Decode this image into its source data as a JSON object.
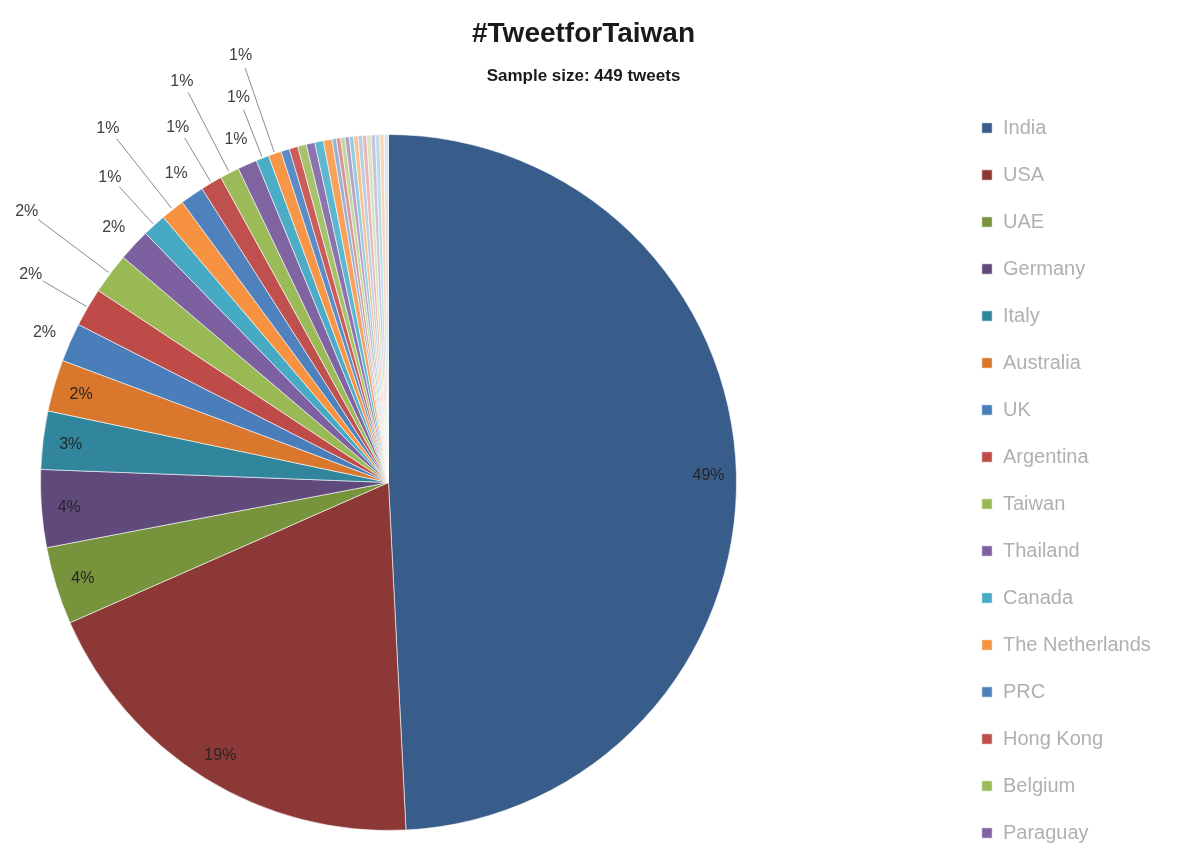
{
  "chart_data": {
    "type": "pie",
    "title": "#TweetforTaiwan",
    "subtitle": "Sample size: 449 tweets",
    "categories": [
      "India",
      "USA",
      "UAE",
      "Germany",
      "Italy",
      "Australia",
      "UK",
      "Argentina",
      "Taiwan",
      "Thailand",
      "Canada",
      "The Netherlands",
      "PRC",
      "Hong Kong",
      "Belgium",
      "Paraguay",
      null,
      null,
      null,
      null,
      null,
      null,
      null,
      null,
      null,
      null,
      null,
      null,
      null,
      null,
      null,
      null,
      null,
      null,
      null,
      null,
      null
    ],
    "values": [
      49.2,
      19.2,
      3.6,
      3.6,
      2.7,
      2.4,
      1.8,
      1.8,
      1.9,
      1.5,
      1.1,
      1.1,
      1.1,
      1.0,
      0.9,
      0.9,
      0.6,
      0.6,
      0.4,
      0.4,
      0.4,
      0.4,
      0.4,
      0.4,
      0.2,
      0.2,
      0.2,
      0.2,
      0.2,
      0.2,
      0.2,
      0.2,
      0.2,
      0.2,
      0.2,
      0.2,
      0.2
    ],
    "colors": [
      "#385d8a",
      "#8c3836",
      "#77933c",
      "#604a7b",
      "#31859c",
      "#d9772d",
      "#4a7ebb",
      "#be4b48",
      "#98b954",
      "#7d60a0",
      "#46aac5",
      "#f69240",
      "#4f81bd",
      "#c0504d",
      "#9bbb59",
      "#8064a2",
      "#4bacc6",
      "#f79646",
      "#5b8cc8",
      "#cc5c59",
      "#a5c36a",
      "#8d73ae",
      "#5cb7d0",
      "#f9a25c",
      "#95b3d7",
      "#d99694",
      "#c3d69b",
      "#b3a2c7",
      "#93cddd",
      "#fac090",
      "#b9cde5",
      "#e6b9b8",
      "#d7e4bd",
      "#ccc1da",
      "#b7dee8",
      "#fcd5b5",
      "#dbe5f1"
    ],
    "value_labels": [
      "49%",
      "19%",
      "4%",
      "4%",
      "3%",
      "2%",
      "2%",
      "2%",
      "2%",
      "2%",
      "1%",
      "1%",
      "1%",
      "1%",
      "1%",
      "1%",
      "1%",
      "1%",
      null,
      null,
      null,
      null,
      null,
      null,
      null,
      null,
      null,
      null,
      null,
      null,
      null,
      null,
      null,
      null,
      null,
      null,
      null
    ],
    "legend": "right"
  }
}
